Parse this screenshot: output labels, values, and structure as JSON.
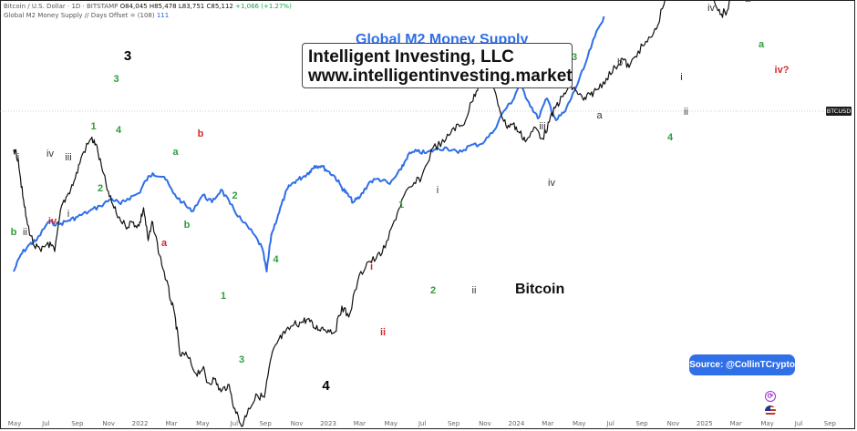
{
  "header": {
    "btc_legend": {
      "label": "Bitcoin / U.S. Dollar · 1D · BITSTAMP",
      "o": "O84,045",
      "h": "H85,478",
      "l": "L83,751",
      "c": "C85,112",
      "change": "+1,066 (+1.27%)"
    },
    "m2_legend": {
      "label": "Global M2 Money Supply // Days Offset = (108)",
      "value": "111"
    }
  },
  "brand": {
    "line1": "Intelligent Investing, LLC",
    "line2": "www.intelligentinvesting.market"
  },
  "source_badge": "Source: @CollinTCrypto",
  "price_tag": "BTCUSD",
  "icons": {
    "alert": "alert-clock-icon",
    "flag": "us-flag-icon"
  },
  "colors": {
    "btc": "#111111",
    "m2": "#2f6fe8",
    "green": "#2e9e3a",
    "red": "#d62828",
    "gray": "#333333"
  },
  "chart_data": {
    "type": "line",
    "x_axis": {
      "ticks": [
        "May",
        "Jul",
        "Sep",
        "Nov",
        "2022",
        "Mar",
        "May",
        "Jul",
        "Sep",
        "Nov",
        "2023",
        "Mar",
        "May",
        "Jul",
        "Sep",
        "Nov",
        "2024",
        "Mar",
        "May",
        "Jul",
        "Sep",
        "Nov",
        "2025",
        "Mar",
        "May",
        "Jul",
        "Sep"
      ]
    },
    "series": [
      {
        "name": "Global M2 Money Supply",
        "color": "#2f6fe8",
        "points": [
          [
            0.0,
            0.88
          ],
          [
            0.3,
            0.79
          ],
          [
            0.7,
            0.73
          ],
          [
            1.0,
            0.71
          ],
          [
            1.5,
            0.61
          ],
          [
            2.0,
            0.62
          ],
          [
            2.4,
            0.6
          ],
          [
            2.8,
            0.58
          ],
          [
            3.3,
            0.55
          ],
          [
            3.8,
            0.52
          ],
          [
            4.3,
            0.48
          ],
          [
            4.7,
            0.51
          ],
          [
            5.0,
            0.48
          ],
          [
            5.5,
            0.45
          ],
          [
            5.8,
            0.38
          ],
          [
            6.1,
            0.34
          ],
          [
            6.6,
            0.36
          ],
          [
            7.0,
            0.45
          ],
          [
            7.4,
            0.5
          ],
          [
            7.8,
            0.55
          ],
          [
            8.3,
            0.46
          ],
          [
            8.7,
            0.5
          ],
          [
            9.1,
            0.43
          ],
          [
            9.5,
            0.51
          ],
          [
            10.0,
            0.6
          ],
          [
            10.5,
            0.67
          ],
          [
            10.9,
            0.75
          ],
          [
            11.1,
            0.88
          ],
          [
            11.3,
            0.68
          ],
          [
            11.6,
            0.57
          ],
          [
            11.9,
            0.46
          ],
          [
            12.1,
            0.41
          ],
          [
            12.4,
            0.38
          ],
          [
            12.7,
            0.36
          ],
          [
            13.0,
            0.33
          ],
          [
            13.2,
            0.3
          ],
          [
            13.5,
            0.3
          ],
          [
            13.8,
            0.33
          ],
          [
            14.1,
            0.36
          ],
          [
            14.4,
            0.42
          ],
          [
            14.6,
            0.45
          ],
          [
            14.9,
            0.5
          ],
          [
            15.2,
            0.47
          ],
          [
            15.6,
            0.39
          ],
          [
            16.0,
            0.37
          ],
          [
            16.5,
            0.4
          ],
          [
            17.0,
            0.32
          ],
          [
            17.3,
            0.24
          ],
          [
            17.7,
            0.22
          ],
          [
            18.1,
            0.23
          ],
          [
            18.5,
            0.21
          ],
          [
            19.0,
            0.2
          ],
          [
            19.5,
            0.23
          ],
          [
            20.0,
            0.19
          ],
          [
            20.5,
            0.18
          ],
          [
            21.0,
            0.12
          ],
          [
            21.5,
            0.0
          ],
          [
            21.9,
            -0.06
          ],
          [
            22.2,
            -0.15
          ],
          [
            22.6,
            -0.05
          ],
          [
            23.0,
            0.04
          ],
          [
            23.4,
            -0.07
          ],
          [
            23.8,
            0.05
          ],
          [
            24.2,
            0.0
          ],
          [
            24.6,
            -0.11
          ],
          [
            25.0,
            -0.23
          ],
          [
            25.5,
            -0.41
          ],
          [
            25.9,
            -0.52
          ]
        ]
      },
      {
        "name": "Bitcoin",
        "color": "#111111",
        "points": [
          [
            0.0,
            0.21
          ],
          [
            0.2,
            0.26
          ],
          [
            0.4,
            0.47
          ],
          [
            0.6,
            0.62
          ],
          [
            0.9,
            0.74
          ],
          [
            1.2,
            0.77
          ],
          [
            1.5,
            0.72
          ],
          [
            1.8,
            0.77
          ],
          [
            2.1,
            0.52
          ],
          [
            2.4,
            0.45
          ],
          [
            2.7,
            0.37
          ],
          [
            3.0,
            0.24
          ],
          [
            3.4,
            0.15
          ],
          [
            3.6,
            0.18
          ],
          [
            3.9,
            0.33
          ],
          [
            4.2,
            0.47
          ],
          [
            4.5,
            0.56
          ],
          [
            4.9,
            0.63
          ],
          [
            5.2,
            0.61
          ],
          [
            5.5,
            0.63
          ],
          [
            5.7,
            0.53
          ],
          [
            5.9,
            0.71
          ],
          [
            6.1,
            0.61
          ],
          [
            6.4,
            0.79
          ],
          [
            6.7,
            0.93
          ],
          [
            6.9,
            1.04
          ],
          [
            7.1,
            1.14
          ],
          [
            7.3,
            1.34
          ],
          [
            7.6,
            1.34
          ],
          [
            8.0,
            1.44
          ],
          [
            8.3,
            1.41
          ],
          [
            8.5,
            1.49
          ],
          [
            8.8,
            1.47
          ],
          [
            9.1,
            1.54
          ],
          [
            9.4,
            1.5
          ],
          [
            9.7,
            1.63
          ],
          [
            10.0,
            1.73
          ],
          [
            10.3,
            1.63
          ],
          [
            10.7,
            1.56
          ],
          [
            11.0,
            1.57
          ],
          [
            11.3,
            1.35
          ],
          [
            11.6,
            1.26
          ],
          [
            11.9,
            1.22
          ],
          [
            12.3,
            1.17
          ],
          [
            12.6,
            1.16
          ],
          [
            12.9,
            1.14
          ],
          [
            13.2,
            1.19
          ],
          [
            13.5,
            1.19
          ],
          [
            13.8,
            1.2
          ],
          [
            14.1,
            1.21
          ],
          [
            14.4,
            1.07
          ],
          [
            14.7,
            1.13
          ],
          [
            15.1,
            0.93
          ],
          [
            15.5,
            0.83
          ],
          [
            15.9,
            0.81
          ],
          [
            16.3,
            0.75
          ],
          [
            16.7,
            0.6
          ],
          [
            17.1,
            0.47
          ],
          [
            17.5,
            0.41
          ],
          [
            17.9,
            0.36
          ],
          [
            18.4,
            0.2
          ],
          [
            18.9,
            0.17
          ],
          [
            19.3,
            0.09
          ],
          [
            19.7,
            0.08
          ],
          [
            20.1,
            -0.05
          ],
          [
            20.4,
            -0.15
          ],
          [
            20.7,
            -0.19
          ],
          [
            21.0,
            -0.14
          ],
          [
            21.3,
            -0.02
          ],
          [
            21.6,
            0.08
          ],
          [
            21.9,
            0.07
          ],
          [
            22.2,
            0.12
          ],
          [
            22.5,
            0.16
          ],
          [
            22.9,
            0.09
          ],
          [
            23.2,
            0.15
          ],
          [
            23.5,
            0.06
          ],
          [
            23.8,
            -0.03
          ],
          [
            24.1,
            -0.08
          ],
          [
            24.4,
            -0.14
          ],
          [
            24.7,
            -0.11
          ],
          [
            25.0,
            -0.06
          ],
          [
            25.3,
            -0.09
          ],
          [
            25.6,
            -0.12
          ],
          [
            26.0,
            -0.18
          ],
          [
            26.4,
            -0.24
          ],
          [
            26.7,
            -0.29
          ],
          [
            27.0,
            -0.24
          ],
          [
            27.4,
            -0.33
          ],
          [
            27.8,
            -0.38
          ],
          [
            28.2,
            -0.45
          ],
          [
            28.6,
            -0.63
          ],
          [
            28.9,
            -0.77
          ],
          [
            29.2,
            -0.82
          ],
          [
            29.5,
            -0.71
          ],
          [
            29.8,
            -0.75
          ],
          [
            30.1,
            -0.94
          ],
          [
            30.4,
            -0.78
          ],
          [
            30.7,
            -0.63
          ],
          [
            31.0,
            -0.53
          ],
          [
            31.3,
            -0.55
          ],
          [
            31.6,
            -0.66
          ],
          [
            31.9,
            -0.63
          ],
          [
            32.2,
            -0.63
          ]
        ]
      }
    ],
    "wave_labels": [
      {
        "text": "b",
        "color": "green",
        "x": 0.0,
        "y": 0.68
      },
      {
        "text": "ii",
        "color": "gray",
        "x": 0.5,
        "y": 0.68
      },
      {
        "text": "i",
        "color": "gray",
        "x": 0.2,
        "y": 0.27
      },
      {
        "text": "iv",
        "color": "gray",
        "x": 1.6,
        "y": 0.25
      },
      {
        "text": "iii",
        "color": "gray",
        "x": 2.4,
        "y": 0.27
      },
      {
        "text": "iv",
        "color": "red",
        "x": 1.7,
        "y": 0.62
      },
      {
        "text": "i",
        "color": "gray",
        "x": 2.4,
        "y": 0.58
      },
      {
        "text": "1",
        "color": "green",
        "x": 3.5,
        "y": 0.1
      },
      {
        "text": "2",
        "color": "green",
        "x": 3.8,
        "y": 0.44
      },
      {
        "text": "3",
        "color": "green",
        "x": 4.5,
        "y": -0.16
      },
      {
        "text": "4",
        "color": "green",
        "x": 4.6,
        "y": 0.12
      },
      {
        "text": "3",
        "color": "black",
        "x": 5.0,
        "y": -0.28
      },
      {
        "text": "a",
        "color": "green",
        "x": 7.1,
        "y": 0.24
      },
      {
        "text": "b",
        "color": "red",
        "x": 8.2,
        "y": 0.14
      },
      {
        "text": "a",
        "color": "red",
        "x": 6.6,
        "y": 0.74
      },
      {
        "text": "b",
        "color": "green",
        "x": 7.6,
        "y": 0.64
      },
      {
        "text": "2",
        "color": "green",
        "x": 9.7,
        "y": 0.48
      },
      {
        "text": "1",
        "color": "green",
        "x": 9.2,
        "y": 1.03
      },
      {
        "text": "4",
        "color": "green",
        "x": 11.5,
        "y": 0.83
      },
      {
        "text": "3",
        "color": "green",
        "x": 10.0,
        "y": 1.38
      },
      {
        "text": "4",
        "color": "black",
        "x": 13.7,
        "y": 1.53
      },
      {
        "text": "i",
        "color": "red",
        "x": 15.7,
        "y": 0.87
      },
      {
        "text": "ii",
        "color": "red",
        "x": 16.2,
        "y": 1.23
      },
      {
        "text": "1",
        "color": "green",
        "x": 17.0,
        "y": 0.53
      },
      {
        "text": "i",
        "color": "gray",
        "x": 18.6,
        "y": 0.45
      },
      {
        "text": "2",
        "color": "green",
        "x": 18.4,
        "y": 1.0
      },
      {
        "text": "ii",
        "color": "gray",
        "x": 20.2,
        "y": 1.0
      },
      {
        "text": "iii",
        "color": "gray",
        "x": 23.2,
        "y": 0.1
      },
      {
        "text": "iv",
        "color": "gray",
        "x": 23.6,
        "y": 0.41
      },
      {
        "text": "3",
        "color": "green",
        "x": 24.6,
        "y": -0.28
      },
      {
        "text": "b",
        "color": "gray",
        "x": 26.6,
        "y": -0.25
      },
      {
        "text": "a",
        "color": "gray",
        "x": 25.7,
        "y": 0.04
      },
      {
        "text": "4",
        "color": "green",
        "x": 28.8,
        "y": 0.16
      },
      {
        "text": "i",
        "color": "gray",
        "x": 29.3,
        "y": -0.17
      },
      {
        "text": "ii",
        "color": "gray",
        "x": 29.5,
        "y": 0.02
      },
      {
        "text": "iii",
        "color": "gray",
        "x": 31.0,
        "y": -0.94
      },
      {
        "text": "iii",
        "color": "red",
        "x": 31.8,
        "y": -0.97
      },
      {
        "text": "b",
        "color": "gray",
        "x": 32.5,
        "y": -0.82
      },
      {
        "text": "iv",
        "color": "gray",
        "x": 30.6,
        "y": -0.55
      },
      {
        "text": "a",
        "color": "gray",
        "x": 32.2,
        "y": -0.6
      },
      {
        "text": "b",
        "color": "green",
        "x": 33.3,
        "y": -0.7
      },
      {
        "text": "a",
        "color": "green",
        "x": 32.8,
        "y": -0.35
      },
      {
        "text": "iv?",
        "color": "red",
        "x": 33.7,
        "y": -0.21
      }
    ],
    "series_labels": [
      {
        "text": "Global M2 Money Supply",
        "color": "#2f6fe8",
        "x": 15.0,
        "y": -0.37
      },
      {
        "text": "Bitcoin",
        "color": "#111111",
        "x": 22.0,
        "y": 1.0
      }
    ]
  }
}
